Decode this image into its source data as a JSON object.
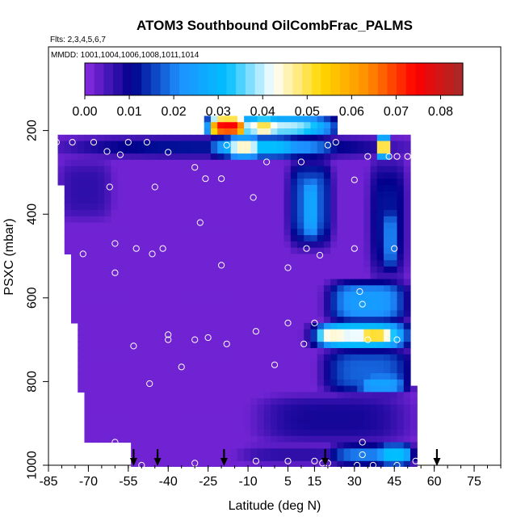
{
  "chart_data": {
    "type": "heatmap",
    "title": "ATOM3 Southbound OilCombFrac_PALMS",
    "flights_label": "Flts: 2,3,4,5,6,7",
    "dates_label": "MMDD: 1001,1004,1006,1008,1011,1014",
    "xlabel": "Latitude (deg N)",
    "ylabel": "PSXC (mbar)",
    "xlim": [
      -85,
      85
    ],
    "ylim": [
      1000,
      0
    ],
    "x_ticks": [
      -85,
      -70,
      -55,
      -40,
      -25,
      -10,
      5,
      15,
      30,
      45,
      60,
      75
    ],
    "y_ticks": [
      200,
      400,
      600,
      800,
      1000
    ],
    "colorbar": {
      "ticks": [
        0.0,
        0.01,
        0.02,
        0.03,
        0.04,
        0.05,
        0.06,
        0.07,
        0.08
      ],
      "tick_labels": [
        "0.00",
        "0.01",
        "0.02",
        "0.03",
        "0.04",
        "0.05",
        "0.06",
        "0.07",
        "0.08"
      ],
      "range": [
        0,
        0.085
      ],
      "colors": [
        "#8a2be2",
        "#00008b",
        "#1e90ff",
        "#00bfff",
        "#ffffff",
        "#ffd700",
        "#ff8c00",
        "#ff0000",
        "#a52a2a"
      ]
    },
    "background_value": 0.002,
    "features": [
      {
        "lat": [
          -82,
          50
        ],
        "p": [
          215,
          265
        ],
        "value": 0.012
      },
      {
        "lat": [
          -20,
          25
        ],
        "p": [
          215,
          265
        ],
        "value": 0.022
      },
      {
        "lat": [
          -18,
          -5
        ],
        "p": [
          215,
          265
        ],
        "value": 0.045
      },
      {
        "lat": [
          -25,
          12
        ],
        "p": [
          215,
          265
        ],
        "value": 0.032
      },
      {
        "lat": [
          38,
          44
        ],
        "p": [
          215,
          265
        ],
        "value": 0.052
      },
      {
        "lat": [
          -28,
          23
        ],
        "p": [
          168,
          212
        ],
        "value": 0.04
      },
      {
        "lat": [
          -25,
          -10
        ],
        "p": [
          168,
          212
        ],
        "value": 0.075
      },
      {
        "lat": [
          -10,
          2
        ],
        "p": [
          168,
          212
        ],
        "value": 0.05
      },
      {
        "lat": [
          -5,
          20
        ],
        "p": [
          170,
          212
        ],
        "value": 0.028
      },
      {
        "lat": [
          35,
          50
        ],
        "p": [
          265,
          560
        ],
        "value": 0.012
      },
      {
        "lat": [
          40,
          47
        ],
        "p": [
          380,
          540
        ],
        "value": 0.02
      },
      {
        "lat": [
          5,
          22
        ],
        "p": [
          270,
          480
        ],
        "value": 0.018
      },
      {
        "lat": [
          10,
          18
        ],
        "p": [
          300,
          470
        ],
        "value": 0.026
      },
      {
        "lat": [
          20,
          50
        ],
        "p": [
          560,
          660
        ],
        "value": 0.024
      },
      {
        "lat": [
          15,
          50
        ],
        "p": [
          660,
          720
        ],
        "value": 0.042
      },
      {
        "lat": [
          15,
          30
        ],
        "p": [
          670,
          710
        ],
        "value": 0.045
      },
      {
        "lat": [
          30,
          45
        ],
        "p": [
          670,
          710
        ],
        "value": 0.052
      },
      {
        "lat": [
          18,
          52
        ],
        "p": [
          720,
          830
        ],
        "value": 0.018
      },
      {
        "lat": [
          30,
          50
        ],
        "p": [
          780,
          830
        ],
        "value": 0.025
      },
      {
        "lat": [
          -8,
          52
        ],
        "p": [
          830,
          950
        ],
        "value": 0.009
      },
      {
        "lat": [
          20,
          52
        ],
        "p": [
          950,
          1000
        ],
        "value": 0.02
      },
      {
        "lat": [
          38,
          52
        ],
        "p": [
          950,
          1000
        ],
        "value": 0.032
      },
      {
        "lat": [
          -15,
          30
        ],
        "p": [
          950,
          1000
        ],
        "value": 0.007
      },
      {
        "lat": [
          -82,
          -60
        ],
        "p": [
          265,
          420
        ],
        "value": 0.007
      }
    ],
    "samples": [
      {
        "lat": -82,
        "p": 228
      },
      {
        "lat": -76,
        "p": 228
      },
      {
        "lat": -68,
        "p": 228
      },
      {
        "lat": -55,
        "p": 228
      },
      {
        "lat": -48,
        "p": 228
      },
      {
        "lat": -63,
        "p": 250
      },
      {
        "lat": -58,
        "p": 258
      },
      {
        "lat": -40,
        "p": 252
      },
      {
        "lat": -18,
        "p": 235
      },
      {
        "lat": 20,
        "p": 235
      },
      {
        "lat": 23,
        "p": 228
      },
      {
        "lat": 35,
        "p": 262
      },
      {
        "lat": 43,
        "p": 262
      },
      {
        "lat": 46,
        "p": 262
      },
      {
        "lat": 50,
        "p": 262
      },
      {
        "lat": -30,
        "p": 288
      },
      {
        "lat": -26,
        "p": 315
      },
      {
        "lat": -20,
        "p": 315
      },
      {
        "lat": -3,
        "p": 275
      },
      {
        "lat": 10,
        "p": 275
      },
      {
        "lat": -62,
        "p": 335
      },
      {
        "lat": -45,
        "p": 335
      },
      {
        "lat": -8,
        "p": 360
      },
      {
        "lat": 30,
        "p": 318
      },
      {
        "lat": -28,
        "p": 420
      },
      {
        "lat": -60,
        "p": 470
      },
      {
        "lat": -52,
        "p": 482
      },
      {
        "lat": -42,
        "p": 482
      },
      {
        "lat": -46,
        "p": 495
      },
      {
        "lat": -72,
        "p": 495
      },
      {
        "lat": -60,
        "p": 540
      },
      {
        "lat": -20,
        "p": 522
      },
      {
        "lat": 12,
        "p": 482
      },
      {
        "lat": 17,
        "p": 498
      },
      {
        "lat": 5,
        "p": 528
      },
      {
        "lat": 30,
        "p": 482
      },
      {
        "lat": 45,
        "p": 482
      },
      {
        "lat": 32,
        "p": 585
      },
      {
        "lat": 33,
        "p": 615
      },
      {
        "lat": 5,
        "p": 660
      },
      {
        "lat": 15,
        "p": 660
      },
      {
        "lat": -40,
        "p": 688
      },
      {
        "lat": -40,
        "p": 700
      },
      {
        "lat": -30,
        "p": 700
      },
      {
        "lat": -25,
        "p": 695
      },
      {
        "lat": -7,
        "p": 680
      },
      {
        "lat": -53,
        "p": 715
      },
      {
        "lat": -18,
        "p": 710
      },
      {
        "lat": 11,
        "p": 710
      },
      {
        "lat": 35,
        "p": 700
      },
      {
        "lat": 46,
        "p": 700
      },
      {
        "lat": -35,
        "p": 765
      },
      {
        "lat": 0,
        "p": 760
      },
      {
        "lat": -47,
        "p": 805
      },
      {
        "lat": 33,
        "p": 945
      },
      {
        "lat": 33,
        "p": 975
      },
      {
        "lat": -60,
        "p": 945
      },
      {
        "lat": -55,
        "p": 985
      },
      {
        "lat": -50,
        "p": 1000
      },
      {
        "lat": -30,
        "p": 995
      },
      {
        "lat": -7,
        "p": 990
      },
      {
        "lat": 5,
        "p": 990
      },
      {
        "lat": 15,
        "p": 990
      },
      {
        "lat": 18,
        "p": 995
      },
      {
        "lat": 20,
        "p": 995
      },
      {
        "lat": 31,
        "p": 1000
      },
      {
        "lat": 37,
        "p": 1000
      },
      {
        "lat": 46,
        "p": 1000
      },
      {
        "lat": 53,
        "p": 990
      }
    ],
    "arrows_lat": [
      -53,
      -44,
      -19,
      19,
      61
    ]
  }
}
